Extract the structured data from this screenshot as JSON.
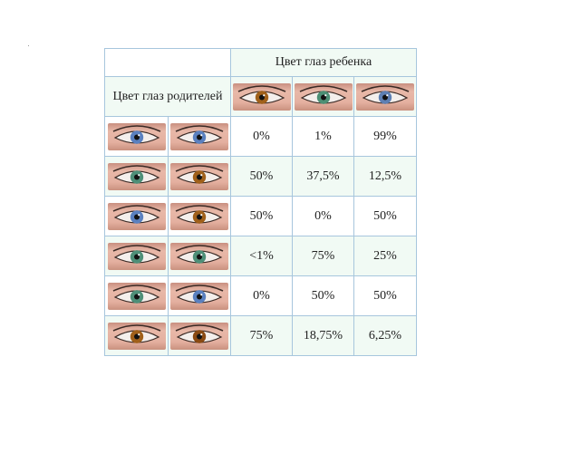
{
  "header": {
    "child_eye_color": "Цвет глаз ребенка",
    "parents_eye_color": "Цвет глаз родителей"
  },
  "child_columns": [
    {
      "eye": "brown-eye-icon",
      "iris": "#a0601a"
    },
    {
      "eye": "green-eye-icon",
      "iris": "#4c8f74"
    },
    {
      "eye": "blue-eye-icon",
      "iris": "#5e7fb3"
    }
  ],
  "rows": [
    {
      "parent1": {
        "eye": "blue-eye-icon",
        "iris": "#5a80bf"
      },
      "parent2": {
        "eye": "blue-eye-icon",
        "iris": "#5a80bf"
      },
      "values": [
        "0%",
        "1%",
        "99%"
      ]
    },
    {
      "parent1": {
        "eye": "green-eye-icon",
        "iris": "#4e8f78"
      },
      "parent2": {
        "eye": "brown-eye-icon",
        "iris": "#a0601a"
      },
      "values": [
        "50%",
        "37,5%",
        "12,5%"
      ]
    },
    {
      "parent1": {
        "eye": "blue-eye-icon",
        "iris": "#5a80bf"
      },
      "parent2": {
        "eye": "brown-eye-icon",
        "iris": "#a0601a"
      },
      "values": [
        "50%",
        "0%",
        "50%"
      ]
    },
    {
      "parent1": {
        "eye": "green-eye-icon",
        "iris": "#4e8f78"
      },
      "parent2": {
        "eye": "green-eye-icon",
        "iris": "#4e8f78"
      },
      "values": [
        "<1%",
        "75%",
        "25%"
      ]
    },
    {
      "parent1": {
        "eye": "green-eye-icon",
        "iris": "#4e8f78"
      },
      "parent2": {
        "eye": "blue-eye-icon",
        "iris": "#5a80bf"
      },
      "values": [
        "0%",
        "50%",
        "50%"
      ]
    },
    {
      "parent1": {
        "eye": "brown-eye-icon",
        "iris": "#a0601a"
      },
      "parent2": {
        "eye": "brown-eye-icon",
        "iris": "#8a4a12"
      },
      "values": [
        "75%",
        "18,75%",
        "6,25%"
      ]
    }
  ]
}
